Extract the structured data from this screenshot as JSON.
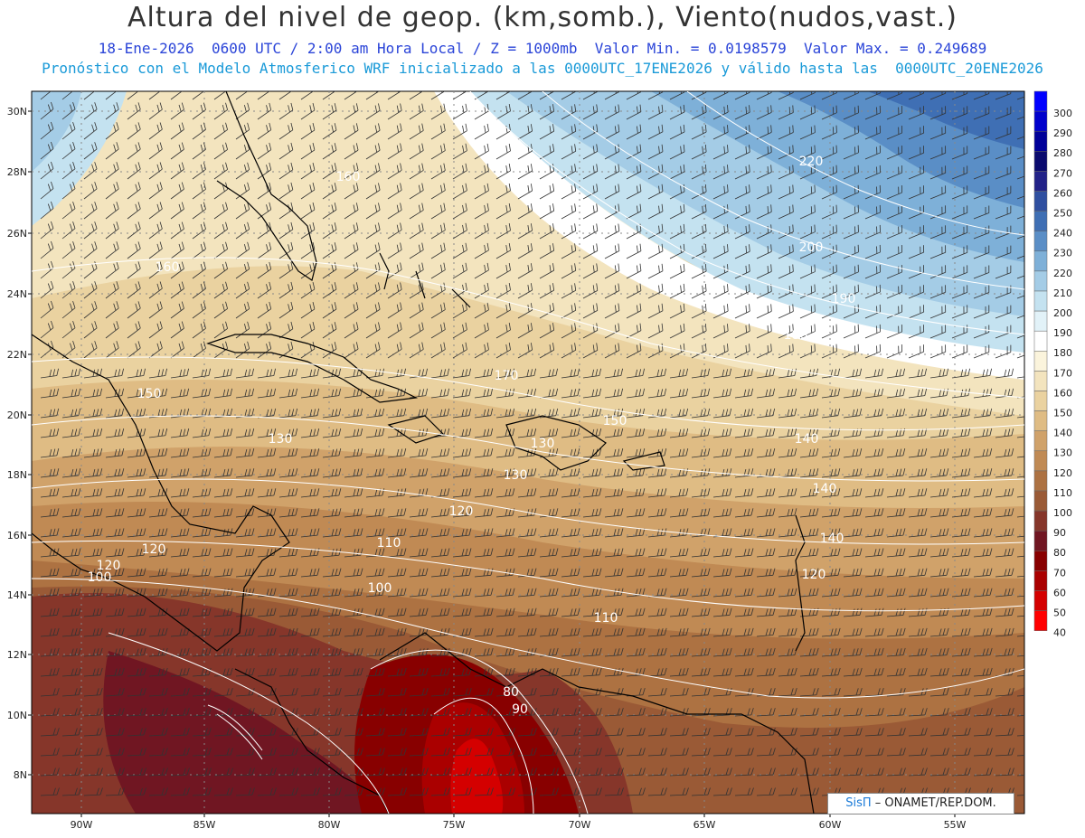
{
  "header": {
    "title": "Altura del nivel de geop. (km,somb.), Viento(nudos,vast.)",
    "subtitle": "18-Ene-2026  0600 UTC / 2:00 am Hora Local / Z = 1000mb  Valor Min. = 0.0198579  Valor Max. = 0.249689",
    "model_line": "Pronóstico con el Modelo Atmosferico WRF inicializado a las 0000UTC_17ENE2026 y válido hasta las  0000UTC_20ENE2026"
  },
  "axes": {
    "lon_labels": [
      "90W",
      "85W",
      "80W",
      "75W",
      "70W",
      "65W",
      "60W",
      "55W"
    ],
    "lat_labels": [
      "30N",
      "28N",
      "26N",
      "24N",
      "22N",
      "20N",
      "18N",
      "16N",
      "14N",
      "12N",
      "10N",
      "8N"
    ]
  },
  "colorbar": {
    "levels": [
      "300",
      "290",
      "280",
      "270",
      "260",
      "250",
      "240",
      "230",
      "220",
      "210",
      "200",
      "190",
      "180",
      "170",
      "160",
      "150",
      "140",
      "130",
      "120",
      "110",
      "100",
      "90",
      "80",
      "70",
      "60",
      "50",
      "40"
    ],
    "colors": [
      "#0000ff",
      "#0000cc",
      "#000099",
      "#0a0a6e",
      "#222288",
      "#2f4fa0",
      "#3f6fb4",
      "#5a8ec6",
      "#7eb0d8",
      "#a4cce6",
      "#c4e2f0",
      "#e2f2f8",
      "#ffffff",
      "#fbf4dc",
      "#f3e4be",
      "#ead2a0",
      "#dfbc84",
      "#d0a26a",
      "#c08a54",
      "#ad7242",
      "#9a5a36",
      "#86362a",
      "#701622",
      "#880000",
      "#aa0000",
      "#d40000",
      "#ff0000"
    ]
  },
  "contour_labels": [
    "220",
    "200",
    "190",
    "180",
    "170",
    "160",
    "160",
    "150",
    "150",
    "140",
    "140",
    "140",
    "130",
    "130",
    "130",
    "120",
    "120",
    "120",
    "120",
    "110",
    "110",
    "100",
    "100",
    "90",
    "80"
  ],
  "credit": {
    "brand": "SisΠ",
    "text": " – ONAMET/REP.DOM."
  }
}
